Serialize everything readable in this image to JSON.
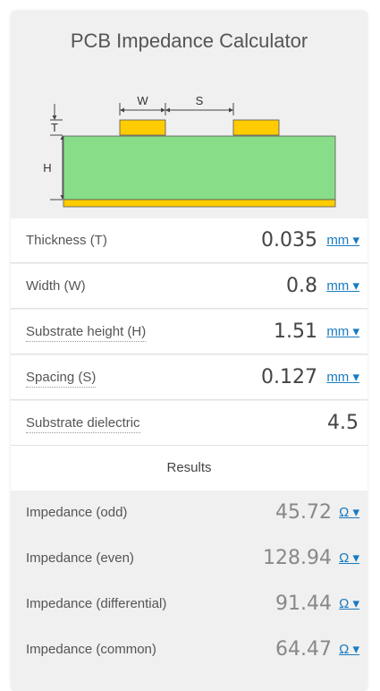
{
  "title": "PCB Impedance Calculator",
  "diagram": {
    "labels": {
      "w": "W",
      "s": "S",
      "t": "T",
      "h": "H"
    },
    "colors": {
      "substrate": "#88dd88",
      "copper": "#ffcc00",
      "line": "#444444"
    }
  },
  "inputs": [
    {
      "label": "Thickness (T)",
      "value": "0.035",
      "unit": "mm ▾"
    },
    {
      "label": "Width (W)",
      "value": "0.8",
      "unit": "mm ▾"
    },
    {
      "label": "Substrate height (H)",
      "value": "1.51",
      "unit": "mm ▾"
    },
    {
      "label": "Spacing (S)",
      "value": "0.127",
      "unit": "mm ▾"
    },
    {
      "label": "Substrate dielectric",
      "value": "4.5",
      "unit": ""
    }
  ],
  "results_label": "Results",
  "results": [
    {
      "label": "Impedance (odd)",
      "value": "45.72",
      "unit": "Ω ▾"
    },
    {
      "label": "Impedance (even)",
      "value": "128.94",
      "unit": "Ω ▾"
    },
    {
      "label": "Impedance (differential)",
      "value": "91.44",
      "unit": "Ω ▾"
    },
    {
      "label": "Impedance (common)",
      "value": "64.47",
      "unit": "Ω ▾"
    }
  ]
}
